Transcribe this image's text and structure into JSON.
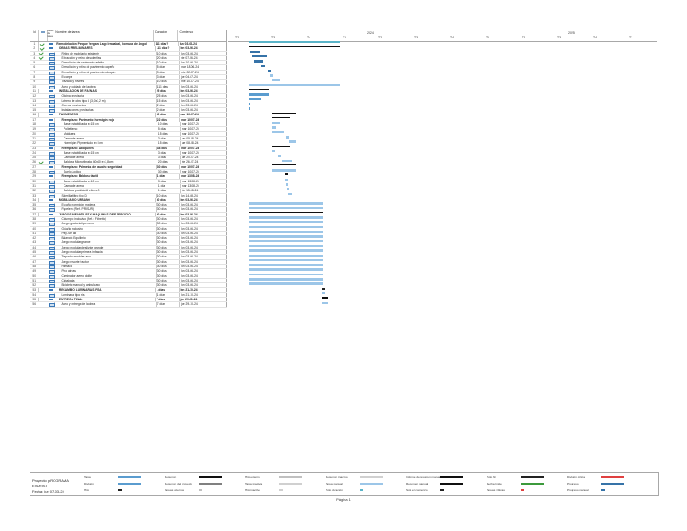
{
  "table": {
    "headers": {
      "id": "Id",
      "indicators": "",
      "mode": "Modo de tarea",
      "name": "Nombre de tarea",
      "duration": "Duración",
      "start": "Comienzo"
    },
    "rows": [
      {
        "id": "1",
        "name": "Remodelación Parque Vergara Lago Irrazabal, Comuna de Angol",
        "duration": "111 días?",
        "start": "lun 03-06-24",
        "level": 0,
        "summary": true,
        "mode": "auto",
        "indicator": "check"
      },
      {
        "id": "2",
        "name": "OBRAS PRELIMINARES",
        "duration": "111 días?",
        "start": "lun 03-06-24",
        "level": 1,
        "summary": true,
        "mode": "auto",
        "indicator": "check"
      },
      {
        "id": "3",
        "name": "Retiro de mobiliario existente",
        "duration": "10 días",
        "start": "lun 03-06-24",
        "level": 2,
        "summary": false,
        "mode": "manual",
        "indicator": "check"
      },
      {
        "id": "4",
        "name": "Extracción y retiro de solerillas",
        "duration": "20 días",
        "start": "vie 07-06-24",
        "level": 2,
        "summary": false,
        "mode": "manual",
        "indicator": "check"
      },
      {
        "id": "5",
        "name": "Demolición de pavimento asfalto",
        "duration": "10 días",
        "start": "lun 10-06-24",
        "level": 2,
        "summary": false,
        "mode": "manual",
        "indicator": "none"
      },
      {
        "id": "6",
        "name": "Demolición y retiro de pavimento capeño",
        "duration": "5 días",
        "start": "mar 18-06-24",
        "level": 2,
        "summary": false,
        "mode": "manual",
        "indicator": "none"
      },
      {
        "id": "7",
        "name": "Demolición y retiro de pavimento adoquín",
        "duration": "3 días",
        "start": "mie 02-07-24",
        "level": 2,
        "summary": false,
        "mode": "manual",
        "indicator": "none"
      },
      {
        "id": "8",
        "name": "Escarpe",
        "duration": "3 días",
        "start": "jue 04-07-24",
        "level": 2,
        "summary": false,
        "mode": "manual",
        "indicator": "none"
      },
      {
        "id": "9",
        "name": "Trazado y niveles",
        "duration": "10 días",
        "start": "mié 10-07-24",
        "level": 2,
        "summary": false,
        "mode": "manual",
        "indicator": "none"
      },
      {
        "id": "10",
        "name": "Aseo y cuidado de la obra",
        "duration": "111 días",
        "start": "lun 03-06-24",
        "level": 2,
        "summary": false,
        "mode": "manual",
        "indicator": "none"
      },
      {
        "id": "11",
        "name": "INSTALACION DE FAENAS",
        "duration": "25 días",
        "start": "lun 03-06-24",
        "level": 1,
        "summary": true,
        "mode": "auto",
        "indicator": "none"
      },
      {
        "id": "12",
        "name": "Oficina provisoria",
        "duration": "25 días",
        "start": "lun 03-06-24",
        "level": 2,
        "summary": false,
        "mode": "manual",
        "indicator": "none"
      },
      {
        "id": "13",
        "name": "Letrero de obra tipo 8 (3,0x3,2 m)",
        "duration": "15 días",
        "start": "lun 03-06-24",
        "level": 2,
        "summary": false,
        "mode": "manual",
        "indicator": "none"
      },
      {
        "id": "14",
        "name": "Cierros provisorios",
        "duration": "2 días",
        "start": "lun 03-06-24",
        "level": 2,
        "summary": false,
        "mode": "manual",
        "indicator": "none"
      },
      {
        "id": "15",
        "name": "Instalaciones provisorias",
        "duration": "2 días",
        "start": "lun 03-06-24",
        "level": 2,
        "summary": false,
        "mode": "manual",
        "indicator": "none"
      },
      {
        "id": "16",
        "name": "PAVIMENTOS",
        "duration": "30 días",
        "start": "mar 10-07-24",
        "level": 1,
        "summary": true,
        "mode": "auto",
        "indicator": "none"
      },
      {
        "id": "17",
        "name": "Reemplazo: Pavimento hormigón rojo",
        "duration": "22 días",
        "start": "mar 10-07-24",
        "level": 2,
        "summary": true,
        "mode": "auto",
        "indicator": "none"
      },
      {
        "id": "18",
        "name": "Base estabilizada e=15 cm",
        "duration": "10 días",
        "start": "mar 10-07-24",
        "level": 3,
        "summary": false,
        "mode": "manual",
        "indicator": "none"
      },
      {
        "id": "19",
        "name": "Polietileno",
        "duration": "5 días",
        "start": "mar 10-07-24",
        "level": 3,
        "summary": false,
        "mode": "manual",
        "indicator": "none"
      },
      {
        "id": "20",
        "name": "Moldajes",
        "duration": "15 días",
        "start": "mar 10-07-24",
        "level": 3,
        "summary": false,
        "mode": "manual",
        "indicator": "none"
      },
      {
        "id": "21",
        "name": "Cama de arena",
        "duration": "3 días",
        "start": "lun 05-08-24",
        "level": 3,
        "summary": false,
        "mode": "manual",
        "indicator": "none"
      },
      {
        "id": "22",
        "name": "Hormigón Pigmentado e=7cm",
        "duration": "15 días",
        "start": "jue 08-08-24",
        "level": 3,
        "summary": false,
        "mode": "manual",
        "indicator": "none"
      },
      {
        "id": "23",
        "name": "Reemplazo: Adoquines",
        "duration": "38 días",
        "start": "mar 10-07-24",
        "level": 2,
        "summary": true,
        "mode": "auto",
        "indicator": "none"
      },
      {
        "id": "24",
        "name": "Base estabilizada e=15 cm",
        "duration": "3 días",
        "start": "mar 10-07-24",
        "level": 3,
        "summary": false,
        "mode": "manual",
        "indicator": "none"
      },
      {
        "id": "25",
        "name": "Cama de arena",
        "duration": "3 días",
        "start": "jue 20-07-24",
        "level": 3,
        "summary": false,
        "mode": "manual",
        "indicator": "none"
      },
      {
        "id": "26",
        "name": "Baldosa Microvibrada 40x40 e=3,8cm",
        "duration": "20 días",
        "start": "vie 26-07-24",
        "level": 3,
        "summary": false,
        "mode": "manual",
        "indicator": "check"
      },
      {
        "id": "27",
        "name": "Reemplazo: Palmetas de caucho seguridad",
        "duration": "30 días",
        "start": "mar 10-07-24",
        "level": 2,
        "summary": true,
        "mode": "auto",
        "indicator": "none"
      },
      {
        "id": "28",
        "name": "Suelo Lodico",
        "duration": "30 días",
        "start": "mar 10-07-24",
        "level": 3,
        "summary": false,
        "mode": "manual",
        "indicator": "none"
      },
      {
        "id": "29",
        "name": "Reemplazo: Baldosa táctil",
        "duration": "1 días",
        "start": "mar 13-08-24",
        "level": 2,
        "summary": true,
        "mode": "auto",
        "indicator": "none"
      },
      {
        "id": "30",
        "name": "Base estabilizada e=10 cm",
        "duration": "3 días",
        "start": "mar 13-08-24",
        "level": 3,
        "summary": false,
        "mode": "manual",
        "indicator": "none"
      },
      {
        "id": "31",
        "name": "Cama de arena",
        "duration": "1 día",
        "start": "mar 13-08-24",
        "level": 3,
        "summary": false,
        "mode": "manual",
        "indicator": "none"
      },
      {
        "id": "32",
        "name": "Baldosa podotáctil relieve 0",
        "duration": "1 días",
        "start": "vie 15-08-24",
        "level": 3,
        "summary": false,
        "mode": "manual",
        "indicator": "none"
      },
      {
        "id": "33",
        "name": "Solerilla tiltro tipo D",
        "duration": "10 días",
        "start": "lun 14-08-24",
        "level": 2,
        "summary": false,
        "mode": "manual",
        "indicator": "none"
      },
      {
        "id": "34",
        "name": "MOBILIARIO URBANO",
        "duration": "30 días",
        "start": "lun 03-06-24",
        "level": 1,
        "summary": true,
        "mode": "auto",
        "indicator": "none"
      },
      {
        "id": "35",
        "name": "Escaño hormigón madera",
        "duration": "30 días",
        "start": "lun 03-06-24",
        "level": 2,
        "summary": false,
        "mode": "manual",
        "indicator": "none"
      },
      {
        "id": "36",
        "name": "Papelero (Ref.: PRISUR)",
        "duration": "30 días",
        "start": "lun 03-06-24",
        "level": 2,
        "summary": false,
        "mode": "manual",
        "indicator": "none"
      },
      {
        "id": "37",
        "name": "JUEGOS INFANTILES Y MAQUINAS DE EJERCICIO",
        "duration": "30 días",
        "start": "lun 03-06-24",
        "level": 1,
        "summary": true,
        "mode": "auto",
        "indicator": "none"
      },
      {
        "id": "38",
        "name": "Columpio inclusivo (Ref.: Fichetto)",
        "duration": "30 días",
        "start": "lun 03-06-24",
        "level": 2,
        "summary": false,
        "mode": "manual",
        "indicator": "none"
      },
      {
        "id": "39",
        "name": "Juego giratorio tipo carro",
        "duration": "30 días",
        "start": "lun 03-06-24",
        "level": 2,
        "summary": false,
        "mode": "manual",
        "indicator": "none"
      },
      {
        "id": "40",
        "name": "Grúa/io inclusivo",
        "duration": "30 días",
        "start": "lun 03-06-24",
        "level": 2,
        "summary": false,
        "mode": "manual",
        "indicator": "none"
      },
      {
        "id": "41",
        "name": "Play-Set all",
        "duration": "30 días",
        "start": "lun 03-06-24",
        "level": 2,
        "summary": false,
        "mode": "manual",
        "indicator": "none"
      },
      {
        "id": "42",
        "name": "Balancín Equilibrio",
        "duration": "30 días",
        "start": "lun 03-06-24",
        "level": 2,
        "summary": false,
        "mode": "manual",
        "indicator": "none"
      },
      {
        "id": "43",
        "name": "Juego modular grande",
        "duration": "30 días",
        "start": "lun 03-06-24",
        "level": 2,
        "summary": false,
        "mode": "manual",
        "indicator": "none"
      },
      {
        "id": "44",
        "name": "Juego modular desliznte grande",
        "duration": "30 días",
        "start": "lun 03-06-24",
        "level": 2,
        "summary": false,
        "mode": "manual",
        "indicator": "none"
      },
      {
        "id": "45",
        "name": "Juego modular primera infancia",
        "duration": "30 días",
        "start": "lun 03-06-24",
        "level": 2,
        "summary": false,
        "mode": "manual",
        "indicator": "none"
      },
      {
        "id": "46",
        "name": "Trepador modular auto",
        "duration": "30 días",
        "start": "lun 03-06-24",
        "level": 2,
        "summary": false,
        "mode": "manual",
        "indicator": "none"
      },
      {
        "id": "47",
        "name": "Juego resorte tractor",
        "duration": "30 días",
        "start": "lun 03-06-24",
        "level": 2,
        "summary": false,
        "mode": "manual",
        "indicator": "none"
      },
      {
        "id": "48",
        "name": "Hamaca",
        "duration": "30 días",
        "start": "lun 03-06-24",
        "level": 2,
        "summary": false,
        "mode": "manual",
        "indicator": "none"
      },
      {
        "id": "49",
        "name": "Pino aireas",
        "duration": "30 días",
        "start": "lun 03-06-24",
        "level": 2,
        "summary": false,
        "mode": "manual",
        "indicator": "none"
      },
      {
        "id": "50",
        "name": "Caminador aereo doble",
        "duration": "30 días",
        "start": "lun 03-06-24",
        "level": 2,
        "summary": false,
        "mode": "manual",
        "indicator": "none"
      },
      {
        "id": "51",
        "name": "Cabalgata",
        "duration": "30 días",
        "start": "lun 03-06-24",
        "level": 2,
        "summary": false,
        "mode": "manual",
        "indicator": "none"
      },
      {
        "id": "52",
        "name": "Bicicleta manual y ambulcaso",
        "duration": "30 días",
        "start": "lun 03-06-24",
        "level": 2,
        "summary": false,
        "mode": "manual",
        "indicator": "none"
      },
      {
        "id": "53",
        "name": "RECAMBIO LUMINARIAS FIJA",
        "duration": "1 días",
        "start": "lun 21-10-24",
        "level": 1,
        "summary": true,
        "mode": "auto",
        "indicator": "none"
      },
      {
        "id": "54",
        "name": "Luminaria tipo Iris",
        "duration": "1 días",
        "start": "lun 21-10-24",
        "level": 2,
        "summary": false,
        "mode": "manual",
        "indicator": "none"
      },
      {
        "id": "55",
        "name": "ENTREGA FINAL",
        "duration": "7 días",
        "start": "jue 29-10-24",
        "level": 1,
        "summary": true,
        "mode": "auto",
        "indicator": "none"
      },
      {
        "id": "56",
        "name": "Aseo y entrega de la obra",
        "duration": "7 días",
        "start": "jue 29-10-24",
        "level": 2,
        "summary": false,
        "mode": "manual",
        "indicator": "none"
      }
    ]
  },
  "timeline": {
    "year_labels": [
      "2024",
      "2025"
    ],
    "period_labels": [
      "T2",
      "T3",
      "T4",
      "T1",
      "T2",
      "T3",
      "T4",
      "T1",
      "T2",
      "T3",
      "T4",
      "T1"
    ]
  },
  "gantt": [
    {
      "start": 0,
      "end": 111,
      "type": "sumproj"
    },
    {
      "start": 0,
      "end": 111,
      "type": "sumbar"
    },
    {
      "start": 2,
      "end": 14,
      "type": "progress"
    },
    {
      "start": 4,
      "end": 22,
      "type": "progress"
    },
    {
      "start": 7,
      "end": 17,
      "type": "progress"
    },
    {
      "start": 15,
      "end": 20,
      "type": "progress"
    },
    {
      "start": 24,
      "end": 27,
      "type": "progress"
    },
    {
      "start": 26,
      "end": 29,
      "type": "manual"
    },
    {
      "start": 28,
      "end": 38,
      "type": "manual"
    },
    {
      "start": 0,
      "end": 111,
      "type": "manual"
    },
    {
      "start": 0,
      "end": 25,
      "type": "sumbar"
    },
    {
      "start": 0,
      "end": 25,
      "type": "auto"
    },
    {
      "start": 0,
      "end": 15,
      "type": "auto"
    },
    {
      "start": 0,
      "end": 2,
      "type": "auto"
    },
    {
      "start": 0,
      "end": 2,
      "type": "auto"
    },
    {
      "start": 28,
      "end": 58,
      "type": "sumbar"
    },
    {
      "start": 28,
      "end": 50,
      "type": "sumbar"
    },
    {
      "start": 28,
      "end": 38,
      "type": "manual"
    },
    {
      "start": 28,
      "end": 33,
      "type": "manual"
    },
    {
      "start": 28,
      "end": 43,
      "type": "manual"
    },
    {
      "start": 46,
      "end": 49,
      "type": "manual"
    },
    {
      "start": 49,
      "end": 58,
      "type": "manual"
    },
    {
      "start": 28,
      "end": 50,
      "type": "sumbar"
    },
    {
      "start": 28,
      "end": 31,
      "type": "manual"
    },
    {
      "start": 36,
      "end": 39,
      "type": "manual"
    },
    {
      "start": 40,
      "end": 52,
      "type": "manual"
    },
    {
      "start": 28,
      "end": 58,
      "type": "sumbar"
    },
    {
      "start": 28,
      "end": 58,
      "type": "manual"
    },
    {
      "start": 45,
      "end": 48,
      "type": "sumbar"
    },
    {
      "start": 45,
      "end": 48,
      "type": "manual"
    },
    {
      "start": 46,
      "end": 47,
      "type": "manual"
    },
    {
      "start": 47,
      "end": 48,
      "type": "manual"
    },
    {
      "start": 48,
      "end": 52,
      "type": "manual"
    },
    {
      "start": 0,
      "end": 90,
      "type": "sumbar"
    },
    {
      "start": 0,
      "end": 90,
      "type": "manual"
    },
    {
      "start": 0,
      "end": 90,
      "type": "manual"
    },
    {
      "start": 0,
      "end": 90,
      "type": "sumbar"
    },
    {
      "start": 0,
      "end": 90,
      "type": "manual"
    },
    {
      "start": 0,
      "end": 90,
      "type": "manual"
    },
    {
      "start": 0,
      "end": 90,
      "type": "manual"
    },
    {
      "start": 0,
      "end": 90,
      "type": "manual"
    },
    {
      "start": 0,
      "end": 90,
      "type": "manual"
    },
    {
      "start": 0,
      "end": 90,
      "type": "manual"
    },
    {
      "start": 0,
      "end": 90,
      "type": "manual"
    },
    {
      "start": 0,
      "end": 90,
      "type": "manual"
    },
    {
      "start": 0,
      "end": 90,
      "type": "manual"
    },
    {
      "start": 0,
      "end": 90,
      "type": "manual"
    },
    {
      "start": 0,
      "end": 90,
      "type": "manual"
    },
    {
      "start": 0,
      "end": 90,
      "type": "manual"
    },
    {
      "start": 0,
      "end": 90,
      "type": "manual"
    },
    {
      "start": 0,
      "end": 90,
      "type": "manual"
    },
    {
      "start": 0,
      "end": 90,
      "type": "manual"
    },
    {
      "start": 89,
      "end": 92,
      "type": "milestone"
    },
    {
      "start": 89,
      "end": 92,
      "type": "manual"
    },
    {
      "start": 89,
      "end": 97,
      "type": "sumbar"
    },
    {
      "start": 89,
      "end": 97,
      "type": "manual"
    }
  ],
  "legend": {
    "project_line1": "Proyecto: pROGRAMA EVARIST",
    "project_line2": "Fecha: jue 07-03-24",
    "items": [
      "Tarea",
      "División",
      "Hito",
      "Resumen",
      "Resumen del proyecto",
      "Tareas externas",
      "Hito externo",
      "Tarea inactiva",
      "Hito inactivo",
      "Resumen inactivo",
      "Tarea manual",
      "Sólo duración",
      "Informe de resumen manual",
      "Resumen manual",
      "Sólo el comienzo",
      "Sólo fin",
      "Fecha límite",
      "Tareas críticas",
      "División crítica",
      "Progreso",
      "Progreso manual"
    ]
  },
  "footer": {
    "page": "Página 1"
  }
}
